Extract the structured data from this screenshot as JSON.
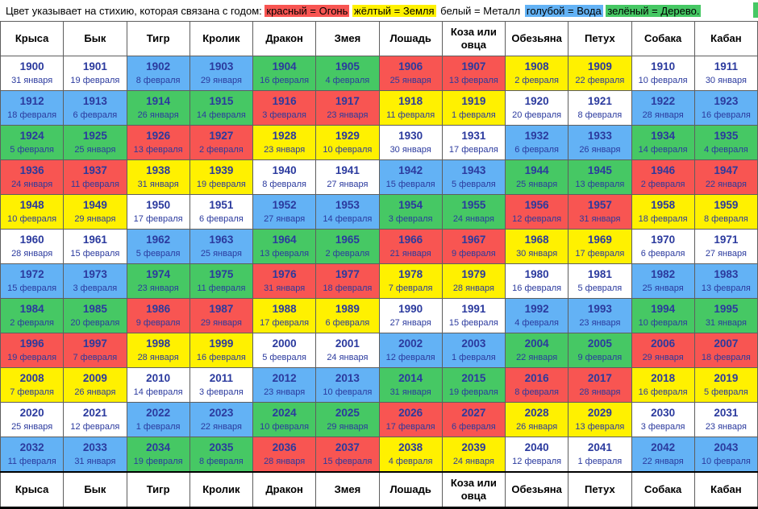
{
  "legend": {
    "prefix": "Цвет указывает на стихию, которая связана с годом:",
    "items": [
      {
        "label": "красный = Огонь",
        "element": "fire"
      },
      {
        "label": "жёлтый = Земля",
        "element": "earth"
      },
      {
        "label": "белый = Металл",
        "element": "metal"
      },
      {
        "label": "голубой = Вода",
        "element": "water"
      },
      {
        "label": "зелёный = Дерево.",
        "element": "wood"
      }
    ]
  },
  "element_colors": {
    "fire": "#f85552",
    "earth": "#fff100",
    "metal": "#ffffff",
    "water": "#63b2f5",
    "wood": "#46c864"
  },
  "columns": [
    "Крыса",
    "Бык",
    "Тигр",
    "Кролик",
    "Дракон",
    "Змея",
    "Лошадь",
    "Коза или овца",
    "Обезьяна",
    "Петух",
    "Собака",
    "Кабан"
  ],
  "rows": [
    [
      {
        "year": "1900",
        "date": "31 января",
        "element": "metal"
      },
      {
        "year": "1901",
        "date": "19 февраля",
        "element": "metal"
      },
      {
        "year": "1902",
        "date": "8 февраля",
        "element": "water"
      },
      {
        "year": "1903",
        "date": "29 января",
        "element": "water"
      },
      {
        "year": "1904",
        "date": "16 февраля",
        "element": "wood"
      },
      {
        "year": "1905",
        "date": "4 февраля",
        "element": "wood"
      },
      {
        "year": "1906",
        "date": "25 января",
        "element": "fire"
      },
      {
        "year": "1907",
        "date": "13 февраля",
        "element": "fire"
      },
      {
        "year": "1908",
        "date": "2 февраля",
        "element": "earth"
      },
      {
        "year": "1909",
        "date": "22 февраля",
        "element": "earth"
      },
      {
        "year": "1910",
        "date": "10 февраля",
        "element": "metal"
      },
      {
        "year": "1911",
        "date": "30 января",
        "element": "metal"
      }
    ],
    [
      {
        "year": "1912",
        "date": "18 февраля",
        "element": "water"
      },
      {
        "year": "1913",
        "date": "6 февраля",
        "element": "water"
      },
      {
        "year": "1914",
        "date": "26 января",
        "element": "wood"
      },
      {
        "year": "1915",
        "date": "14 февраля",
        "element": "wood"
      },
      {
        "year": "1916",
        "date": "3 февраля",
        "element": "fire"
      },
      {
        "year": "1917",
        "date": "23 января",
        "element": "fire"
      },
      {
        "year": "1918",
        "date": "11 февраля",
        "element": "earth"
      },
      {
        "year": "1919",
        "date": "1 февраля",
        "element": "earth"
      },
      {
        "year": "1920",
        "date": "20 февраля",
        "element": "metal"
      },
      {
        "year": "1921",
        "date": "8 февраля",
        "element": "metal"
      },
      {
        "year": "1922",
        "date": "28 января",
        "element": "water"
      },
      {
        "year": "1923",
        "date": "16 февраля",
        "element": "water"
      }
    ],
    [
      {
        "year": "1924",
        "date": "5 февраля",
        "element": "wood"
      },
      {
        "year": "1925",
        "date": "25 января",
        "element": "wood"
      },
      {
        "year": "1926",
        "date": "13 февраля",
        "element": "fire"
      },
      {
        "year": "1927",
        "date": "2 февраля",
        "element": "fire"
      },
      {
        "year": "1928",
        "date": "23 января",
        "element": "earth"
      },
      {
        "year": "1929",
        "date": "10 февраля",
        "element": "earth"
      },
      {
        "year": "1930",
        "date": "30 января",
        "element": "metal"
      },
      {
        "year": "1931",
        "date": "17 февраля",
        "element": "metal"
      },
      {
        "year": "1932",
        "date": "6 февраля",
        "element": "water"
      },
      {
        "year": "1933",
        "date": "26 января",
        "element": "water"
      },
      {
        "year": "1934",
        "date": "14 февраля",
        "element": "wood"
      },
      {
        "year": "1935",
        "date": "4 февраля",
        "element": "wood"
      }
    ],
    [
      {
        "year": "1936",
        "date": "24 января",
        "element": "fire"
      },
      {
        "year": "1937",
        "date": "11 февраля",
        "element": "fire"
      },
      {
        "year": "1938",
        "date": "31 января",
        "element": "earth"
      },
      {
        "year": "1939",
        "date": "19 февраля",
        "element": "earth"
      },
      {
        "year": "1940",
        "date": "8 февраля",
        "element": "metal"
      },
      {
        "year": "1941",
        "date": "27 января",
        "element": "metal"
      },
      {
        "year": "1942",
        "date": "15 февраля",
        "element": "water"
      },
      {
        "year": "1943",
        "date": "5 февраля",
        "element": "water"
      },
      {
        "year": "1944",
        "date": "25 января",
        "element": "wood"
      },
      {
        "year": "1945",
        "date": "13 февраля",
        "element": "wood"
      },
      {
        "year": "1946",
        "date": "2 февраля",
        "element": "fire"
      },
      {
        "year": "1947",
        "date": "22 января",
        "element": "fire"
      }
    ],
    [
      {
        "year": "1948",
        "date": "10 февраля",
        "element": "earth"
      },
      {
        "year": "1949",
        "date": "29 января",
        "element": "earth"
      },
      {
        "year": "1950",
        "date": "17 февраля",
        "element": "metal"
      },
      {
        "year": "1951",
        "date": "6 февраля",
        "element": "metal"
      },
      {
        "year": "1952",
        "date": "27 января",
        "element": "water"
      },
      {
        "year": "1953",
        "date": "14 февраля",
        "element": "water"
      },
      {
        "year": "1954",
        "date": "3 февраля",
        "element": "wood"
      },
      {
        "year": "1955",
        "date": "24 января",
        "element": "wood"
      },
      {
        "year": "1956",
        "date": "12 февраля",
        "element": "fire"
      },
      {
        "year": "1957",
        "date": "31 января",
        "element": "fire"
      },
      {
        "year": "1958",
        "date": "18 февраля",
        "element": "earth"
      },
      {
        "year": "1959",
        "date": "8 февраля",
        "element": "earth"
      }
    ],
    [
      {
        "year": "1960",
        "date": "28 января",
        "element": "metal"
      },
      {
        "year": "1961",
        "date": "15 февраля",
        "element": "metal"
      },
      {
        "year": "1962",
        "date": "5 февраля",
        "element": "water"
      },
      {
        "year": "1963",
        "date": "25 января",
        "element": "water"
      },
      {
        "year": "1964",
        "date": "13 февраля",
        "element": "wood"
      },
      {
        "year": "1965",
        "date": "2 февраля",
        "element": "wood"
      },
      {
        "year": "1966",
        "date": "21 января",
        "element": "fire"
      },
      {
        "year": "1967",
        "date": "9 февраля",
        "element": "fire"
      },
      {
        "year": "1968",
        "date": "30 января",
        "element": "earth"
      },
      {
        "year": "1969",
        "date": "17 февраля",
        "element": "earth"
      },
      {
        "year": "1970",
        "date": "6 февраля",
        "element": "metal"
      },
      {
        "year": "1971",
        "date": "27 января",
        "element": "metal"
      }
    ],
    [
      {
        "year": "1972",
        "date": "15 февраля",
        "element": "water"
      },
      {
        "year": "1973",
        "date": "3 февраля",
        "element": "water"
      },
      {
        "year": "1974",
        "date": "23 января",
        "element": "wood"
      },
      {
        "year": "1975",
        "date": "11 февраля",
        "element": "wood"
      },
      {
        "year": "1976",
        "date": "31 января",
        "element": "fire"
      },
      {
        "year": "1977",
        "date": "18 февраля",
        "element": "fire"
      },
      {
        "year": "1978",
        "date": "7 февраля",
        "element": "earth"
      },
      {
        "year": "1979",
        "date": "28 января",
        "element": "earth"
      },
      {
        "year": "1980",
        "date": "16 февраля",
        "element": "metal"
      },
      {
        "year": "1981",
        "date": "5 февраля",
        "element": "metal"
      },
      {
        "year": "1982",
        "date": "25 января",
        "element": "water"
      },
      {
        "year": "1983",
        "date": "13 февраля",
        "element": "water"
      }
    ],
    [
      {
        "year": "1984",
        "date": "2 февраля",
        "element": "wood"
      },
      {
        "year": "1985",
        "date": "20 февраля",
        "element": "wood"
      },
      {
        "year": "1986",
        "date": "9 февраля",
        "element": "fire"
      },
      {
        "year": "1987",
        "date": "29 января",
        "element": "fire"
      },
      {
        "year": "1988",
        "date": "17 февраля",
        "element": "earth"
      },
      {
        "year": "1989",
        "date": "6 февраля",
        "element": "earth"
      },
      {
        "year": "1990",
        "date": "27 января",
        "element": "metal"
      },
      {
        "year": "1991",
        "date": "15 февраля",
        "element": "metal"
      },
      {
        "year": "1992",
        "date": "4 февраля",
        "element": "water"
      },
      {
        "year": "1993",
        "date": "23 января",
        "element": "water"
      },
      {
        "year": "1994",
        "date": "10 февраля",
        "element": "wood"
      },
      {
        "year": "1995",
        "date": "31 января",
        "element": "wood"
      }
    ],
    [
      {
        "year": "1996",
        "date": "19 февраля",
        "element": "fire"
      },
      {
        "year": "1997",
        "date": "7 февраля",
        "element": "fire"
      },
      {
        "year": "1998",
        "date": "28 января",
        "element": "earth"
      },
      {
        "year": "1999",
        "date": "16 февраля",
        "element": "earth"
      },
      {
        "year": "2000",
        "date": "5 февраля",
        "element": "metal"
      },
      {
        "year": "2001",
        "date": "24 января",
        "element": "metal"
      },
      {
        "year": "2002",
        "date": "12 февраля",
        "element": "water"
      },
      {
        "year": "2003",
        "date": "1 февраля",
        "element": "water"
      },
      {
        "year": "2004",
        "date": "22 января",
        "element": "wood"
      },
      {
        "year": "2005",
        "date": "9 февраля",
        "element": "wood"
      },
      {
        "year": "2006",
        "date": "29 января",
        "element": "fire"
      },
      {
        "year": "2007",
        "date": "18 февраля",
        "element": "fire"
      }
    ],
    [
      {
        "year": "2008",
        "date": "7 февраля",
        "element": "earth"
      },
      {
        "year": "2009",
        "date": "26 января",
        "element": "earth"
      },
      {
        "year": "2010",
        "date": "14 февраля",
        "element": "metal"
      },
      {
        "year": "2011",
        "date": "3 февраля",
        "element": "metal"
      },
      {
        "year": "2012",
        "date": "23 января",
        "element": "water"
      },
      {
        "year": "2013",
        "date": "10 февраля",
        "element": "water"
      },
      {
        "year": "2014",
        "date": "31 января",
        "element": "wood"
      },
      {
        "year": "2015",
        "date": "19 февраля",
        "element": "wood"
      },
      {
        "year": "2016",
        "date": "8 февраля",
        "element": "fire"
      },
      {
        "year": "2017",
        "date": "28 января",
        "element": "fire"
      },
      {
        "year": "2018",
        "date": "16 февраля",
        "element": "earth"
      },
      {
        "year": "2019",
        "date": "5 февраля",
        "element": "earth"
      }
    ],
    [
      {
        "year": "2020",
        "date": "25 января",
        "element": "metal"
      },
      {
        "year": "2021",
        "date": "12 февраля",
        "element": "metal"
      },
      {
        "year": "2022",
        "date": "1 февраля",
        "element": "water"
      },
      {
        "year": "2023",
        "date": "22 января",
        "element": "water"
      },
      {
        "year": "2024",
        "date": "10 февраля",
        "element": "wood"
      },
      {
        "year": "2025",
        "date": "29 января",
        "element": "wood"
      },
      {
        "year": "2026",
        "date": "17 февраля",
        "element": "fire"
      },
      {
        "year": "2027",
        "date": "6 февраля",
        "element": "fire"
      },
      {
        "year": "2028",
        "date": "26 января",
        "element": "earth"
      },
      {
        "year": "2029",
        "date": "13 февраля",
        "element": "earth"
      },
      {
        "year": "2030",
        "date": "3 февраля",
        "element": "metal"
      },
      {
        "year": "2031",
        "date": "23 января",
        "element": "metal"
      }
    ],
    [
      {
        "year": "2032",
        "date": "11 февраля",
        "element": "water"
      },
      {
        "year": "2033",
        "date": "31 января",
        "element": "water"
      },
      {
        "year": "2034",
        "date": "19 февраля",
        "element": "wood"
      },
      {
        "year": "2035",
        "date": "8 февраля",
        "element": "wood"
      },
      {
        "year": "2036",
        "date": "28 января",
        "element": "fire"
      },
      {
        "year": "2037",
        "date": "15 февраля",
        "element": "fire"
      },
      {
        "year": "2038",
        "date": "4 февраля",
        "element": "earth"
      },
      {
        "year": "2039",
        "date": "24 января",
        "element": "earth"
      },
      {
        "year": "2040",
        "date": "12 февраля",
        "element": "metal"
      },
      {
        "year": "2041",
        "date": "1 февраля",
        "element": "metal"
      },
      {
        "year": "2042",
        "date": "22 января",
        "element": "water"
      },
      {
        "year": "2043",
        "date": "10 февраля",
        "element": "water"
      }
    ]
  ]
}
